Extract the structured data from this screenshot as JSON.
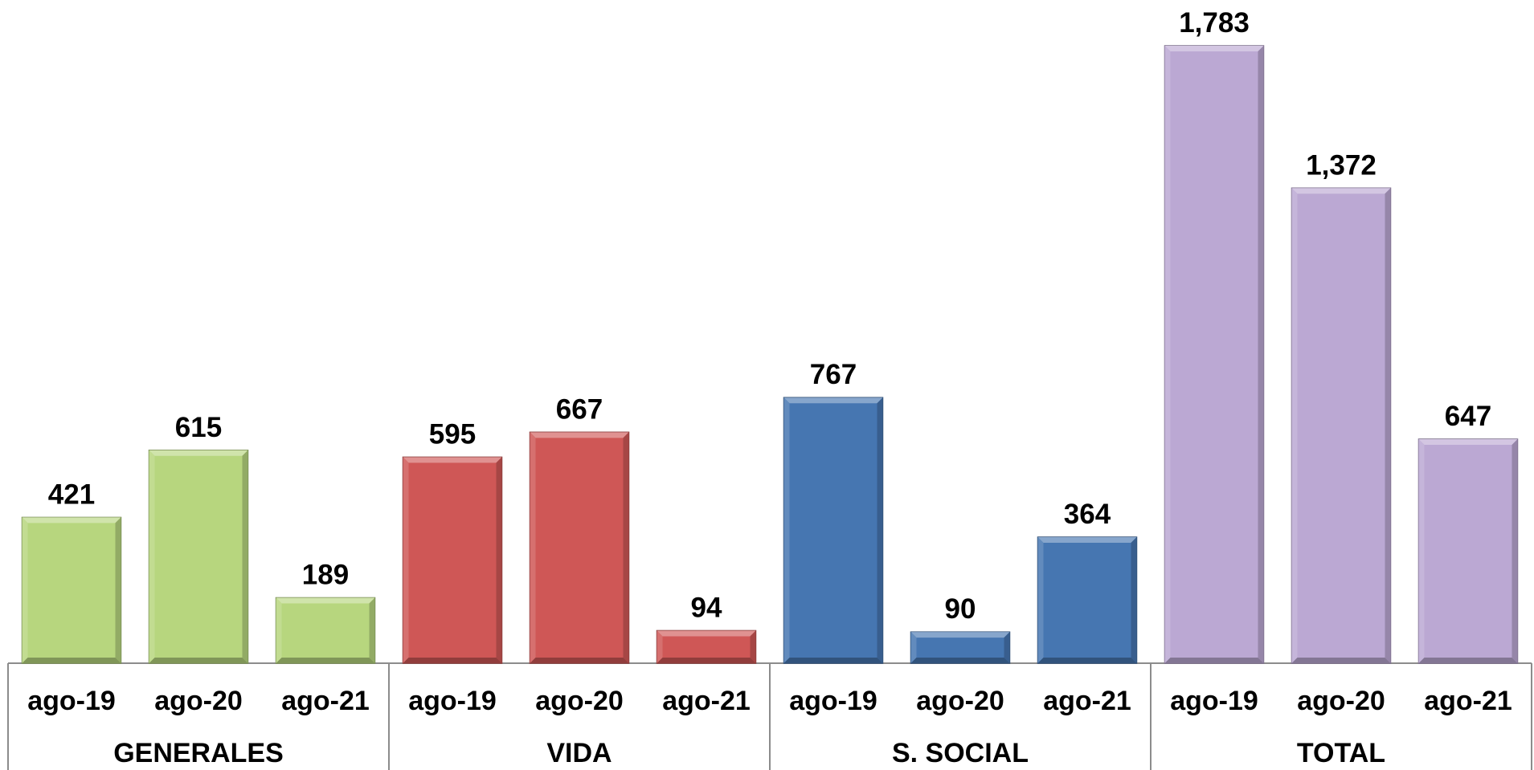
{
  "chart_data": {
    "type": "bar",
    "title": "",
    "xlabel": "",
    "ylabel": "",
    "ylim": [
      0,
      1783
    ],
    "grid": false,
    "legend": "none",
    "groups": [
      {
        "name": "GENERALES",
        "color": "#b7d67e",
        "categories": [
          "ago-19",
          "ago-20",
          "ago-21"
        ],
        "values": [
          421,
          615,
          189
        ],
        "labels": [
          "421",
          "615",
          "189"
        ]
      },
      {
        "name": "VIDA",
        "color": "#cf5756",
        "categories": [
          "ago-19",
          "ago-20",
          "ago-21"
        ],
        "values": [
          595,
          667,
          94
        ],
        "labels": [
          "595",
          "667",
          "94"
        ]
      },
      {
        "name": "S. SOCIAL",
        "color": "#4676b1",
        "categories": [
          "ago-19",
          "ago-20",
          "ago-21"
        ],
        "values": [
          767,
          90,
          364
        ],
        "labels": [
          "767",
          "90",
          "364"
        ]
      },
      {
        "name": "TOTAL",
        "color": "#bba8d3",
        "categories": [
          "ago-19",
          "ago-20",
          "ago-21"
        ],
        "values": [
          1783,
          1372,
          647
        ],
        "labels": [
          "1,783",
          "1,372",
          "647"
        ]
      }
    ]
  }
}
